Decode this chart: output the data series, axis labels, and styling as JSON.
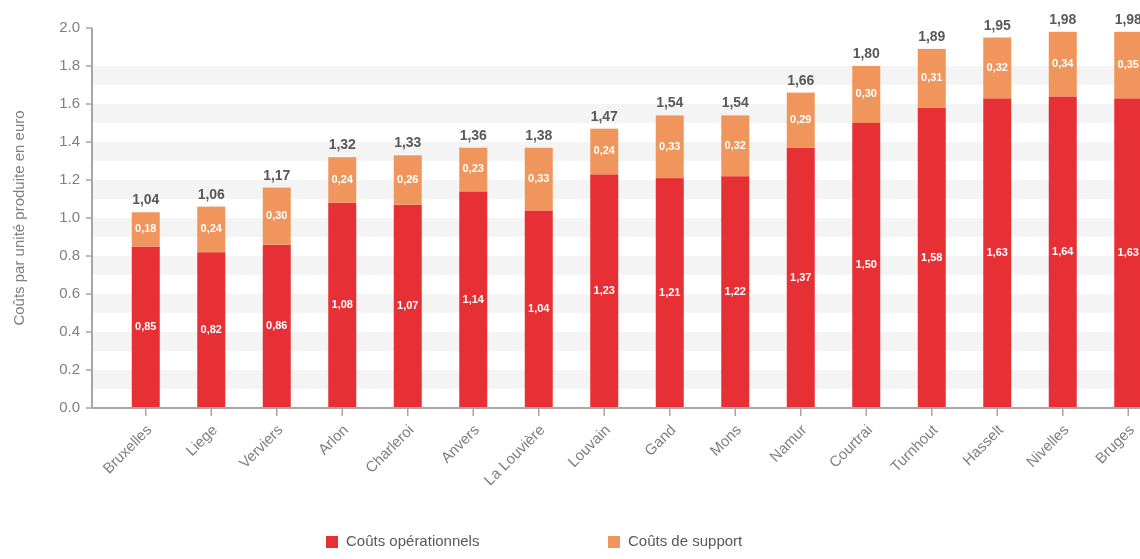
{
  "chart_data": {
    "type": "bar",
    "stacked": true,
    "ylabel": "Coûts par unité produite en euro",
    "categories": [
      "Bruxelles",
      "Liege",
      "Verviers",
      "Arlon",
      "Charleroi",
      "Anvers",
      "La Louvière",
      "Louvain",
      "Gand",
      "Mons",
      "Namur",
      "Courtrai",
      "Turnhout",
      "Hasselt",
      "Nivelles",
      "Bruges"
    ],
    "series": [
      {
        "name": "Coûts opérationnels",
        "color": "#e63036",
        "values": [
          0.85,
          0.82,
          0.86,
          1.08,
          1.07,
          1.14,
          1.04,
          1.23,
          1.21,
          1.22,
          1.37,
          1.5,
          1.58,
          1.63,
          1.64,
          1.63
        ],
        "value_labels": [
          "0,85",
          "0,82",
          "0,86",
          "1,08",
          "1,07",
          "1,14",
          "1,04",
          "1,23",
          "1,21",
          "1,22",
          "1,37",
          "1,50",
          "1,58",
          "1,63",
          "1,64",
          "1,63"
        ]
      },
      {
        "name": "Coûts de support",
        "color": "#f0965c",
        "values": [
          0.18,
          0.24,
          0.3,
          0.24,
          0.26,
          0.23,
          0.33,
          0.24,
          0.33,
          0.32,
          0.29,
          0.3,
          0.31,
          0.32,
          0.34,
          0.35
        ],
        "value_labels": [
          "0,18",
          "0,24",
          "0,30",
          "0,24",
          "0,26",
          "0,23",
          "0,33",
          "0,24",
          "0,33",
          "0,32",
          "0,29",
          "0,30",
          "0,31",
          "0,32",
          "0,34",
          "0,35"
        ]
      }
    ],
    "totals": [
      "1,04",
      "1,06",
      "1,17",
      "1,32",
      "1,33",
      "1,36",
      "1,38",
      "1,47",
      "1,54",
      "1,54",
      "1,66",
      "1,80",
      "1,89",
      "1,95",
      "1,98",
      "1,98"
    ],
    "ylim": [
      0,
      2.0
    ],
    "yticks": [
      {
        "value": 0,
        "label": "0.0"
      },
      {
        "value": 0.2,
        "label": "0.2"
      },
      {
        "value": 0.4,
        "label": "0.4"
      },
      {
        "value": 0.6,
        "label": "0.6"
      },
      {
        "value": 0.8,
        "label": "0.8"
      },
      {
        "value": 1.0,
        "label": "1.0"
      },
      {
        "value": 1.2,
        "label": "1.2"
      },
      {
        "value": 1.4,
        "label": "1.4"
      },
      {
        "value": 1.6,
        "label": "1.6"
      },
      {
        "value": 1.8,
        "label": "1.8"
      },
      {
        "value": 2.0,
        "label": "2.0"
      }
    ],
    "bands": [
      {
        "axis": "y",
        "from": 0.1,
        "to": 0.2,
        "color": "#f4f4f4"
      },
      {
        "axis": "y",
        "from": 0.3,
        "to": 0.4,
        "color": "#f4f4f4"
      },
      {
        "axis": "y",
        "from": 0.5,
        "to": 0.6,
        "color": "#f4f4f4"
      },
      {
        "axis": "y",
        "from": 0.7,
        "to": 0.8,
        "color": "#f4f4f4"
      },
      {
        "axis": "y",
        "from": 0.9,
        "to": 1.0,
        "color": "#f4f4f4"
      },
      {
        "axis": "y",
        "from": 1.1,
        "to": 1.2,
        "color": "#f4f4f4"
      },
      {
        "axis": "y",
        "from": 1.3,
        "to": 1.4,
        "color": "#f4f4f4"
      },
      {
        "axis": "y",
        "from": 1.5,
        "to": 1.6,
        "color": "#f4f4f4"
      },
      {
        "axis": "y",
        "from": 1.7,
        "to": 1.8,
        "color": "#f4f4f4"
      }
    ],
    "legend": "bottom"
  }
}
